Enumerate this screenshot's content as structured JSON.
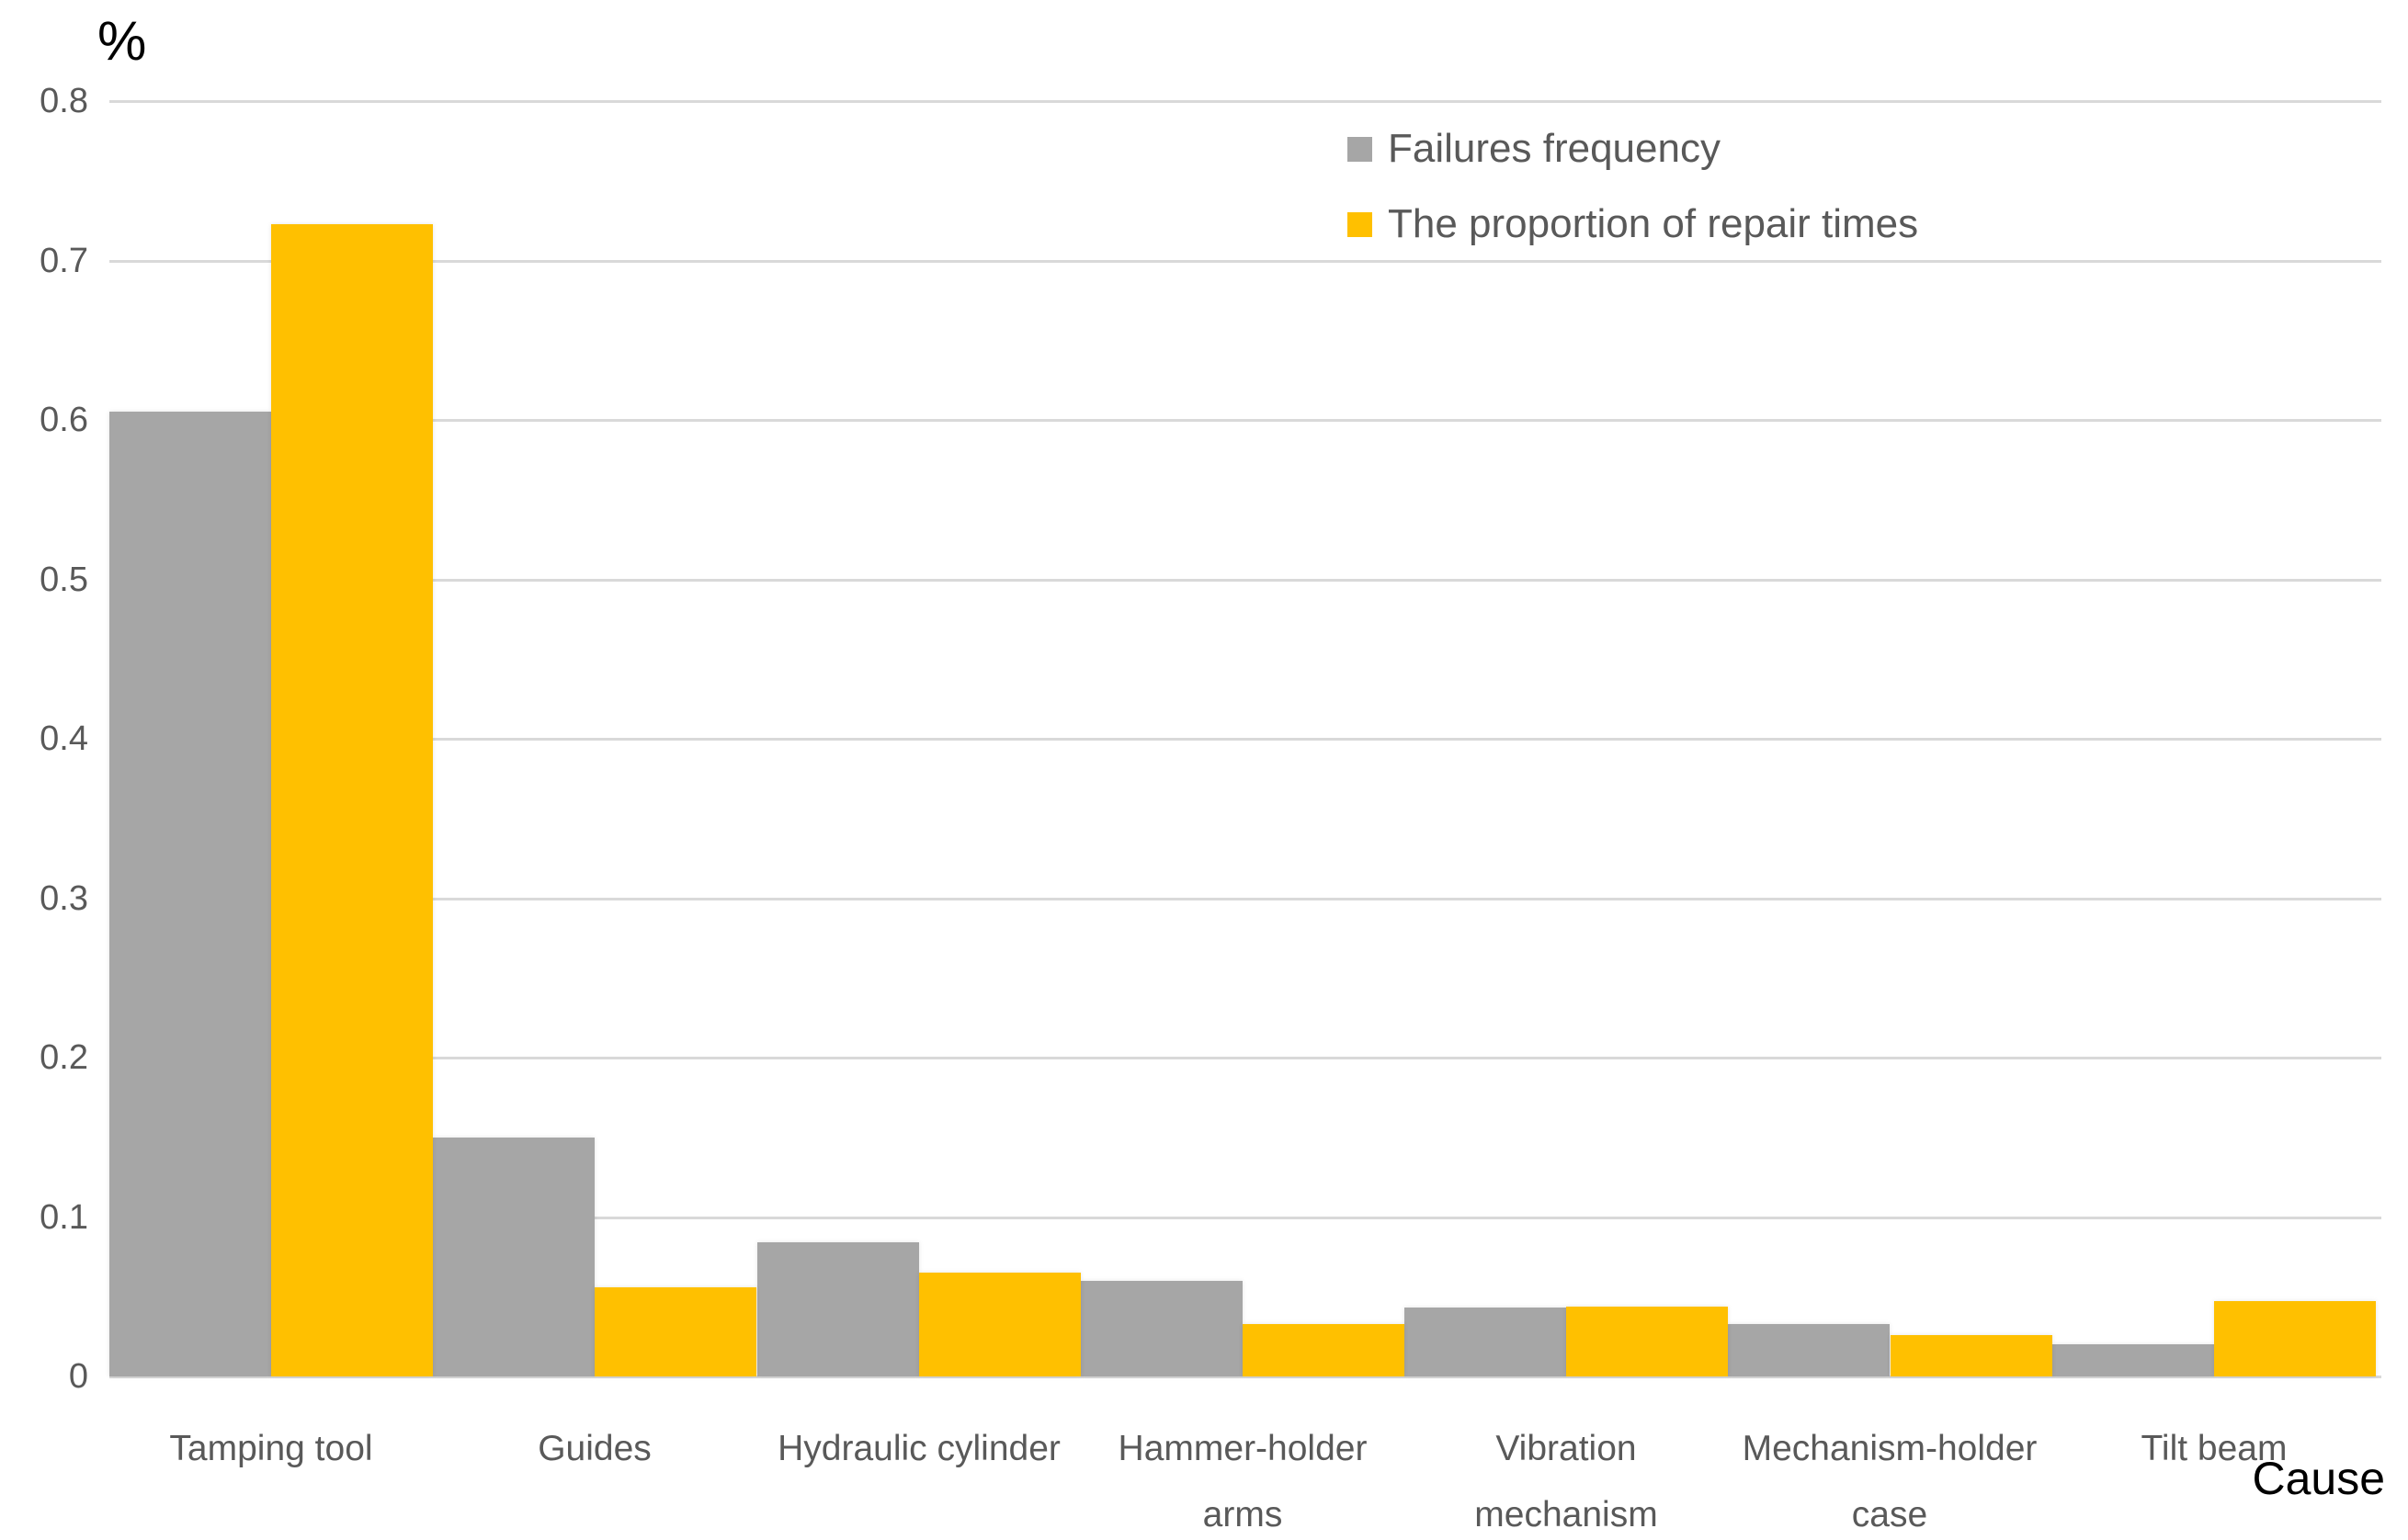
{
  "chart_data": {
    "type": "bar",
    "title": "",
    "y_axis_label": "%",
    "x_axis_label": "Cause",
    "ylim": [
      0,
      0.8
    ],
    "y_ticks": [
      0,
      0.1,
      0.2,
      0.3,
      0.4,
      0.5,
      0.6,
      0.7,
      0.8
    ],
    "grid": true,
    "legend_position": "top-center",
    "categories": [
      "Tamping tool",
      "Guides",
      "Hydraulic cylinder",
      "Hammer-holder\narms",
      "Vibration\nmechanism",
      "Mechanism-holder\ncase",
      "Tilt beam"
    ],
    "series": [
      {
        "name": "Failures frequency",
        "color": "#a6a6a6",
        "values": [
          0.605,
          0.15,
          0.084,
          0.06,
          0.043,
          0.033,
          0.02
        ]
      },
      {
        "name": "The proportion of repair times",
        "color": "#ffc000",
        "values": [
          0.723,
          0.056,
          0.065,
          0.033,
          0.044,
          0.026,
          0.047
        ]
      }
    ],
    "colors": {
      "gridline": "#d9d9d9",
      "axis_text": "#595959",
      "title_text": "#000000"
    }
  }
}
